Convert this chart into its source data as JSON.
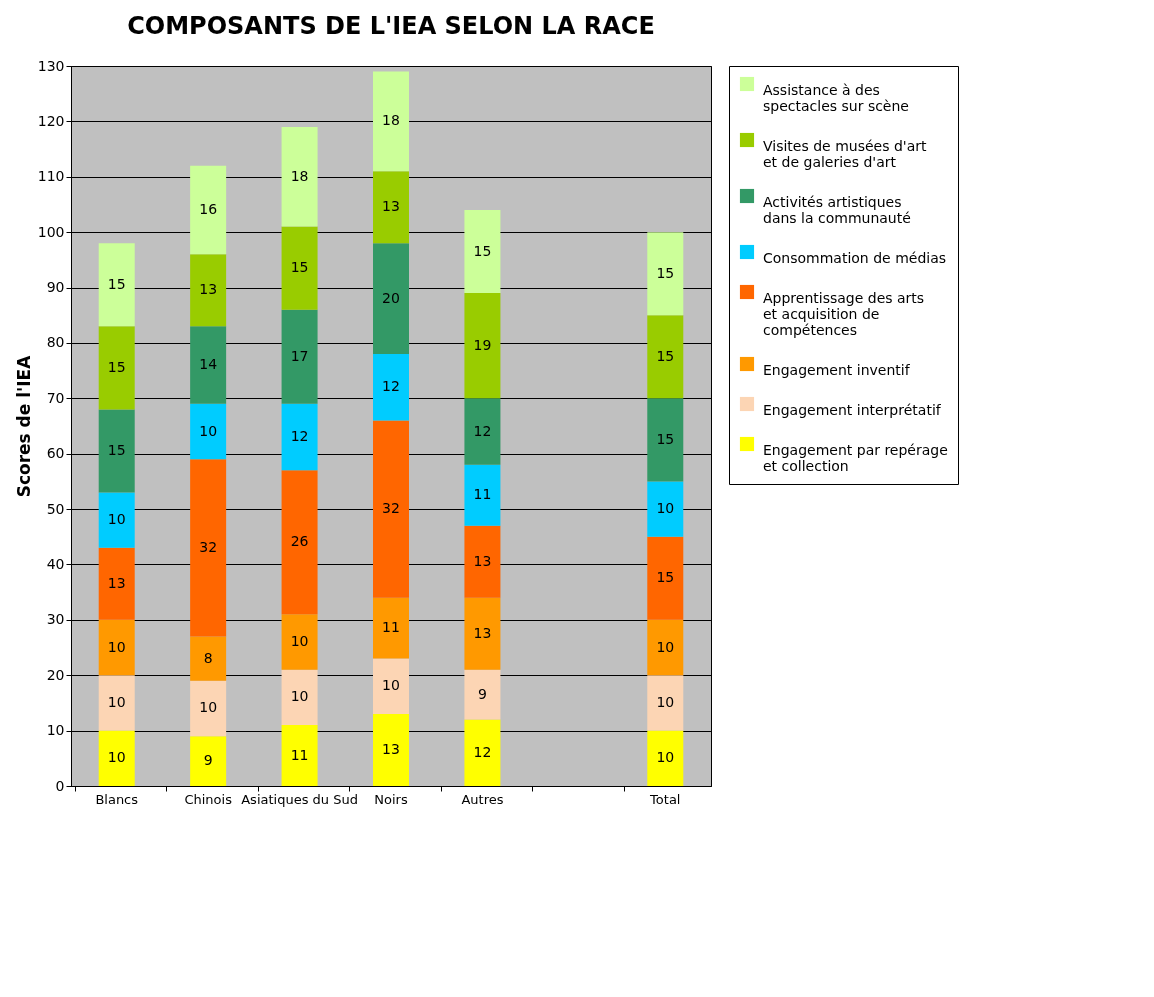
{
  "chart_data": {
    "type": "bar",
    "title": "COMPOSANTS DE L'IEA SELON LA RACE",
    "ylabel": "Scores de l'IEA",
    "stacked": true,
    "data_labels": true,
    "grid": "y",
    "legend": "right",
    "ylim": [
      0,
      130
    ],
    "yticks": [
      0,
      10,
      20,
      30,
      40,
      50,
      60,
      70,
      80,
      90,
      100,
      110,
      120,
      130
    ],
    "categories": [
      "Blancs",
      "Chinois",
      "Asiatiques du Sud",
      "Noirs",
      "Autres",
      null,
      "Total"
    ],
    "series": [
      {
        "name": "Engagement par repérage et collection",
        "color": "#ffff00",
        "values": [
          10,
          9,
          11,
          13,
          12,
          null,
          10
        ]
      },
      {
        "name": "Engagement interprétatif",
        "color": "#fcd5b4",
        "values": [
          10,
          10,
          10,
          10,
          9,
          null,
          10
        ]
      },
      {
        "name": "Engagement inventif",
        "color": "#ff9900",
        "values": [
          10,
          8,
          10,
          11,
          13,
          null,
          10
        ]
      },
      {
        "name": "Apprentissage des arts et acquisition de compétences",
        "color": "#ff6600",
        "values": [
          13,
          32,
          26,
          32,
          13,
          null,
          15
        ]
      },
      {
        "name": "Consommation de médias",
        "color": "#00ccff",
        "values": [
          10,
          10,
          12,
          12,
          11,
          null,
          10
        ]
      },
      {
        "name": "Activités artistiques dans la communauté",
        "color": "#339966",
        "values": [
          15,
          14,
          17,
          20,
          12,
          null,
          15
        ]
      },
      {
        "name": "Visites de musées d'art et de galeries d'art",
        "color": "#99cc00",
        "values": [
          15,
          13,
          15,
          13,
          19,
          null,
          15
        ]
      },
      {
        "name": "Assistance à des spectacles sur scène",
        "color": "#ccff99",
        "values": [
          15,
          16,
          18,
          18,
          15,
          null,
          15
        ]
      }
    ]
  }
}
